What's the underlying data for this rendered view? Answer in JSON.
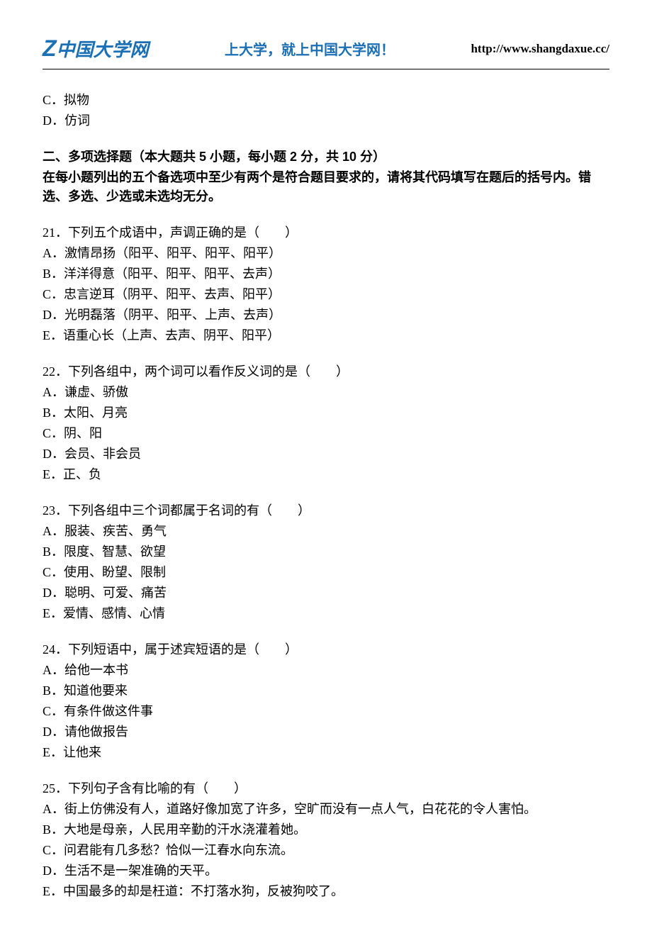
{
  "header": {
    "logo_prefix": "Z",
    "logo_text": "中国大学网",
    "slogan": "上大学，就上中国大学网！",
    "url": "http://www.shangdaxue.cc/",
    "border_color": "#000000",
    "logo_color": "#1a6fb5",
    "slogan_color": "#1a6fb5"
  },
  "orphan_options": {
    "c": "C．拟物",
    "d": "D．仿词"
  },
  "section2": {
    "title": "二、多项选择题（本大题共 5 小题，每小题 2 分，共 10 分）",
    "instruction": "在每小题列出的五个备选项中至少有两个是符合题目要求的，请将其代码填写在题后的括号内。错选、多选、少选或未选均无分。"
  },
  "questions": {
    "q21": {
      "stem": "21．下列五个成语中，声调正确的是（　　）",
      "a": "A．激情昂扬（阳平、阳平、阳平、阳平）",
      "b": "B．洋洋得意（阳平、阳平、阳平、去声）",
      "c": "C．忠言逆耳（阴平、阳平、去声、阳平）",
      "d": "D．光明磊落（阴平、阳平、上声、去声）",
      "e": "E．语重心长（上声、去声、阴平、阳平）"
    },
    "q22": {
      "stem": "22．下列各组中，两个词可以看作反义词的是（　　）",
      "a": "A．谦虚、骄傲",
      "b": "B．太阳、月亮",
      "c": "C．阴、阳",
      "d": "D．会员、非会员",
      "e": "E．正、负"
    },
    "q23": {
      "stem": "23．下列各组中三个词都属于名词的有（　　）",
      "a": "A．服装、疾苦、勇气",
      "b": "B．限度、智慧、欲望",
      "c": "C．使用、盼望、限制",
      "d": "D．聪明、可爱、痛苦",
      "e": "E．爱情、感情、心情"
    },
    "q24": {
      "stem": "24．下列短语中，属于述宾短语的是（　　）",
      "a": "A．给他一本书",
      "b": "B．知道他要来",
      "c": "C．有条件做这件事",
      "d": "D．请他做报告",
      "e": "E．让他来"
    },
    "q25": {
      "stem": "25．下列句子含有比喻的有（　　）",
      "a": "A．街上仿佛没有人，道路好像加宽了许多，空旷而没有一点人气，白花花的令人害怕。",
      "b": "B．大地是母亲，人民用辛勤的汗水浇灌着她。",
      "c": "C．问君能有几多愁？恰似一江春水向东流。",
      "d": "D．生活不是一架准确的天平。",
      "e": "E．中国最多的却是枉道：不打落水狗，反被狗咬了。"
    }
  },
  "styles": {
    "background_color": "#ffffff",
    "text_color": "#000000",
    "body_fontsize": 18,
    "heading_font": "SimHei",
    "body_font": "SimSun"
  }
}
